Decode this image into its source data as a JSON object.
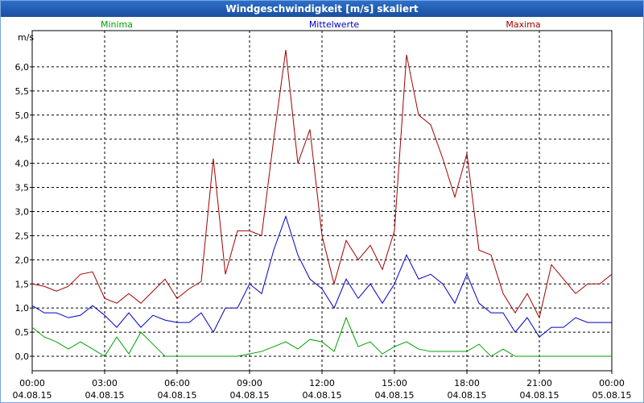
{
  "chart_data": {
    "type": "line",
    "title": "Windgeschwindigkeit [m/s] skaliert",
    "y_label": "m/s",
    "x": [
      0,
      0.5,
      1,
      1.5,
      2,
      2.5,
      3,
      3.5,
      4,
      4.5,
      5,
      5.5,
      6,
      6.5,
      7,
      7.5,
      8,
      8.5,
      9,
      9.5,
      10,
      10.5,
      11,
      11.5,
      12,
      12.5,
      13,
      13.5,
      14,
      14.5,
      15,
      15.5,
      16,
      16.5,
      17,
      17.5,
      18,
      18.5,
      19,
      19.5,
      20,
      20.5,
      21,
      21.5,
      22,
      22.5,
      23,
      23.5,
      24
    ],
    "series": [
      {
        "name": "Minima",
        "color": "#00a000",
        "values": [
          0.6,
          0.4,
          0.3,
          0.15,
          0.3,
          0.15,
          0,
          0.4,
          0.05,
          0.5,
          0.25,
          0,
          0,
          0,
          0,
          0,
          0,
          0,
          0.05,
          0.1,
          0.2,
          0.3,
          0.15,
          0.35,
          0.3,
          0.1,
          0.8,
          0.2,
          0.3,
          0.05,
          0.2,
          0.3,
          0.15,
          0.1,
          0.1,
          0.1,
          0.1,
          0.25,
          0,
          0.15,
          0,
          0,
          0,
          0,
          0,
          0,
          0,
          0,
          0
        ]
      },
      {
        "name": "Mittelwerte",
        "color": "#0000c0",
        "values": [
          1.05,
          0.9,
          0.9,
          0.8,
          0.85,
          1.05,
          0.85,
          0.6,
          0.9,
          0.6,
          0.85,
          0.75,
          0.7,
          0.7,
          0.9,
          0.5,
          1.0,
          1.0,
          1.5,
          1.3,
          2.2,
          2.9,
          2.1,
          1.6,
          1.4,
          1.0,
          1.6,
          1.2,
          1.5,
          1.1,
          1.5,
          2.1,
          1.6,
          1.7,
          1.5,
          1.1,
          1.7,
          1.1,
          0.9,
          0.9,
          0.5,
          0.8,
          0.4,
          0.6,
          0.6,
          0.8,
          0.7,
          0.7,
          0.7
        ]
      },
      {
        "name": "Maxima",
        "color": "#a00000",
        "values": [
          1.5,
          1.45,
          1.35,
          1.45,
          1.7,
          1.75,
          1.2,
          1.1,
          1.3,
          1.1,
          1.35,
          1.6,
          1.2,
          1.4,
          1.55,
          4.1,
          1.7,
          2.6,
          2.6,
          2.5,
          4.5,
          6.35,
          4.0,
          4.7,
          2.5,
          1.5,
          2.4,
          2.0,
          2.3,
          1.8,
          2.6,
          6.25,
          5.0,
          4.8,
          4.1,
          3.3,
          4.2,
          2.2,
          2.1,
          1.3,
          0.9,
          1.3,
          0.8,
          1.9,
          1.6,
          1.3,
          1.5,
          1.5,
          1.7
        ]
      }
    ],
    "xlim": [
      0,
      24
    ],
    "xticks": [
      {
        "value": 0,
        "label": "00:00",
        "date": "04.08.15"
      },
      {
        "value": 3,
        "label": "03:00",
        "date": "04.08.15"
      },
      {
        "value": 6,
        "label": "06:00",
        "date": "04.08.15"
      },
      {
        "value": 9,
        "label": "09:00",
        "date": "04.08.15"
      },
      {
        "value": 12,
        "label": "12:00",
        "date": "04.08.15"
      },
      {
        "value": 15,
        "label": "15:00",
        "date": "04.08.15"
      },
      {
        "value": 18,
        "label": "18:00",
        "date": "04.08.15"
      },
      {
        "value": 21,
        "label": "21:00",
        "date": "04.08.15"
      },
      {
        "value": 24,
        "label": "00:00",
        "date": "05.08.15"
      }
    ],
    "ylim": [
      -0.3,
      6.75
    ],
    "yticks": [
      {
        "value": 0,
        "label": "0,0"
      },
      {
        "value": 0.5,
        "label": "0,5"
      },
      {
        "value": 1,
        "label": "1,0"
      },
      {
        "value": 1.5,
        "label": "1,5"
      },
      {
        "value": 2,
        "label": "2,0"
      },
      {
        "value": 2.5,
        "label": "2,5"
      },
      {
        "value": 3,
        "label": "3,0"
      },
      {
        "value": 3.5,
        "label": "3,5"
      },
      {
        "value": 4,
        "label": "4,0"
      },
      {
        "value": 4.5,
        "label": "4,5"
      },
      {
        "value": 5,
        "label": "5,0"
      },
      {
        "value": 5.5,
        "label": "5,5"
      },
      {
        "value": 6,
        "label": "6,0"
      }
    ],
    "grid": true
  }
}
